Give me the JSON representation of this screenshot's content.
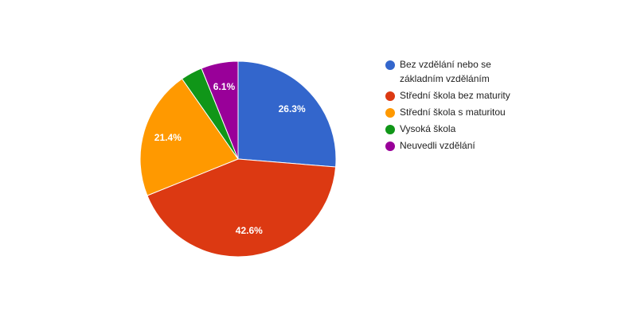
{
  "chart_data": {
    "type": "pie",
    "categories": [
      "Bez vzdělání nebo se základním vzděláním",
      "Střední škola bez maturity",
      "Střední škola s maturitou",
      "Vysoká škola",
      "Neuvedli vzdělání"
    ],
    "values": [
      26.3,
      42.6,
      21.4,
      3.6,
      6.1
    ],
    "value_labels": [
      "26.3%",
      "42.6%",
      "21.4%",
      null,
      "6.1%"
    ],
    "colors": [
      "#3366cc",
      "#dc3912",
      "#ff9900",
      "#109618",
      "#990099"
    ],
    "legend": "right"
  }
}
